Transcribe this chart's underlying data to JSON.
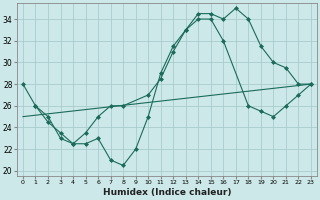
{
  "xlabel": "Humidex (Indice chaleur)",
  "bg_color": "#cce8e8",
  "grid_color": "#aacccc",
  "line_color": "#1a6b5a",
  "xlim": [
    -0.5,
    23.5
  ],
  "ylim": [
    19.5,
    35.5
  ],
  "xticks": [
    0,
    1,
    2,
    3,
    4,
    5,
    6,
    7,
    8,
    9,
    10,
    11,
    12,
    13,
    14,
    15,
    16,
    17,
    18,
    19,
    20,
    21,
    22,
    23
  ],
  "yticks": [
    20,
    22,
    24,
    26,
    28,
    30,
    32,
    34
  ],
  "line1_x": [
    0,
    1,
    2,
    3,
    4,
    5,
    6,
    7,
    8,
    9,
    10,
    11,
    12,
    13,
    14,
    15,
    16,
    17,
    18,
    19,
    20,
    21,
    22,
    23
  ],
  "line1_y": [
    28,
    26,
    24.5,
    23.5,
    22.5,
    22.5,
    23,
    21,
    20.5,
    22,
    25,
    29,
    31.5,
    33,
    34.5,
    34.5,
    34,
    35,
    34,
    31.5,
    30,
    29.5,
    28,
    28
  ],
  "line2_x": [
    1,
    2,
    3,
    4,
    5,
    6,
    7,
    8,
    10,
    11,
    12,
    13,
    14,
    15,
    16,
    18,
    19,
    20,
    21,
    22,
    23
  ],
  "line2_y": [
    26,
    25,
    23,
    22.5,
    23.5,
    25,
    26,
    26,
    27,
    28.5,
    31,
    33,
    34,
    34,
    32,
    26,
    25.5,
    25,
    26,
    27,
    28
  ],
  "line3_x": [
    0,
    23
  ],
  "line3_y": [
    25,
    28
  ]
}
